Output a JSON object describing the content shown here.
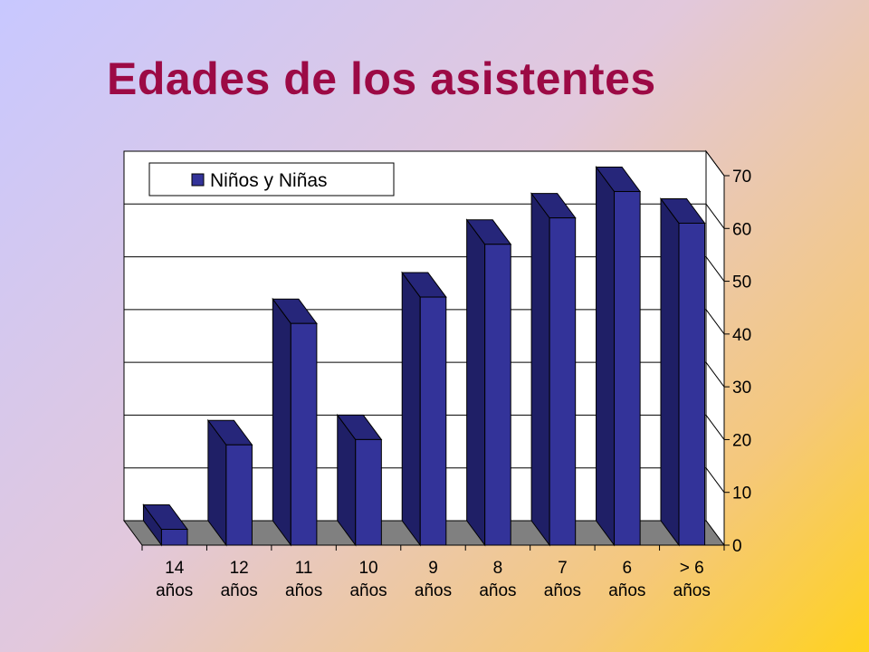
{
  "chart_data": {
    "type": "bar",
    "title": "Edades de los asistentes",
    "categories": [
      [
        "14",
        "años"
      ],
      [
        "12",
        "años"
      ],
      [
        "11",
        "años"
      ],
      [
        "10",
        "años"
      ],
      [
        "9",
        "años"
      ],
      [
        "8",
        "años"
      ],
      [
        "7",
        "años"
      ],
      [
        "6",
        "años"
      ],
      [
        "> 6",
        "años"
      ]
    ],
    "series": [
      {
        "name": "Niños y Niñas",
        "values": [
          3,
          19,
          42,
          20,
          47,
          57,
          62,
          67,
          61
        ]
      }
    ],
    "ylim": [
      0,
      70
    ],
    "yticks": [
      "0",
      "10",
      "20",
      "30",
      "40",
      "50",
      "60",
      "70"
    ],
    "grid": true,
    "legend_position": "top-left",
    "style": "3d-column",
    "colors": {
      "bar_front": "#333399",
      "bar_side": "#1f1f66",
      "bar_top": "#26267a",
      "floor": "#808080",
      "plot_bg": "#ffffff",
      "title": "#9c0a45"
    }
  }
}
